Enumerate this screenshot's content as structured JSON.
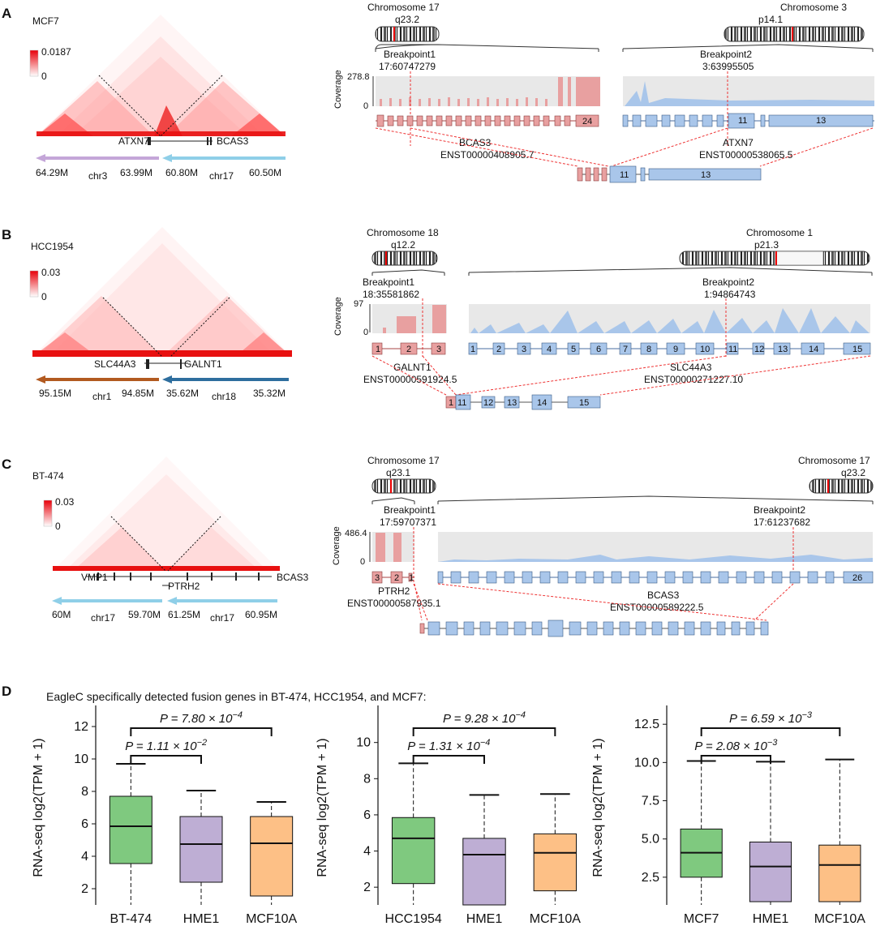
{
  "panels": {
    "A": {
      "label": "A",
      "cell_line": "MCF7",
      "scale_max": "0.0187",
      "scale_min": "0",
      "gene_left": "ATXN7",
      "gene_right": "BCAS3",
      "arrow_left": {
        "start": "64.29M",
        "chrom": "chr3",
        "end": "63.99M"
      },
      "arrow_right": {
        "start": "60.80M",
        "chrom": "chr17",
        "end": "60.50M"
      },
      "chrom1": {
        "name": "Chromosome 17",
        "band": "q23.2"
      },
      "chrom2": {
        "name": "Chromosome 3",
        "band": "p14.1"
      },
      "bp1": {
        "label": "Breakpoint1",
        "pos": "17:60747279"
      },
      "bp2": {
        "label": "Breakpoint2",
        "pos": "3:63995505"
      },
      "coverage_label": "Coverage",
      "coverage_max": "278.8",
      "coverage_min": "0",
      "tx1": {
        "gene": "BCAS3",
        "id": "ENST00000408905.7"
      },
      "tx2": {
        "gene": "ATXN7",
        "id": "ENST00000538065.5"
      },
      "exon_big_left": "24",
      "exon_mid_right": "11",
      "exon_big_right": "13",
      "fusion_exon_a": "11",
      "fusion_exon_b": "13"
    },
    "B": {
      "label": "B",
      "cell_line": "HCC1954",
      "scale_max": "0.03",
      "scale_min": "0",
      "gene_left": "SLC44A3",
      "gene_right": "GALNT1",
      "arrow_left": {
        "start": "95.15M",
        "chrom": "chr1",
        "end": "94.85M"
      },
      "arrow_right": {
        "start": "35.62M",
        "chrom": "chr18",
        "end": "35.32M"
      },
      "chrom1": {
        "name": "Chromosome 18",
        "band": "q12.2"
      },
      "chrom2": {
        "name": "Chromosome 1",
        "band": "p21.3"
      },
      "bp1": {
        "label": "Breakpoint1",
        "pos": "18:35581862"
      },
      "bp2": {
        "label": "Breakpoint2",
        "pos": "1:94864743"
      },
      "coverage_label": "Coverage",
      "coverage_max": "97",
      "coverage_min": "0",
      "tx1": {
        "gene": "GALNT1",
        "id": "ENST00000591924.5"
      },
      "tx2": {
        "gene": "SLC44A3",
        "id": "ENST00000271227.10"
      },
      "left_exons": [
        "1",
        "2",
        "3"
      ],
      "right_exons": [
        "1",
        "2",
        "3",
        "4",
        "5",
        "6",
        "7",
        "8",
        "9",
        "10",
        "11",
        "12",
        "13",
        "14",
        "15"
      ],
      "fusion_exons": [
        "1",
        "11",
        "12",
        "13",
        "14",
        "15"
      ]
    },
    "C": {
      "label": "C",
      "cell_line": "BT-474",
      "scale_max": "0.03",
      "scale_min": "0",
      "gene_left": "VMP1",
      "gene_mid": "PTRH2",
      "gene_right": "BCAS3",
      "arrow_left": {
        "start": "60M",
        "chrom": "chr17",
        "end": "59.70M"
      },
      "arrow_right": {
        "start": "61.25M",
        "chrom": "chr17",
        "end": "60.95M"
      },
      "chrom1": {
        "name": "Chromosome 17",
        "band": "q23.1"
      },
      "chrom2": {
        "name": "Chromosome 17",
        "band": "q23.2"
      },
      "bp1": {
        "label": "Breakpoint1",
        "pos": "17:59707371"
      },
      "bp2": {
        "label": "Breakpoint2",
        "pos": "17:61237682"
      },
      "coverage_label": "Coverage",
      "coverage_max": "486.4",
      "coverage_min": "0",
      "tx1": {
        "gene": "PTRH2",
        "id": "ENST00000587935.1"
      },
      "tx2": {
        "gene": "BCAS3",
        "id": "ENST00000589222.5"
      },
      "left_exons": [
        "3",
        "2",
        "1"
      ],
      "right_exon_last": "26"
    },
    "D": {
      "label": "D",
      "title": "EagleC specifically detected fusion genes in BT-474, HCC1954, and MCF7:"
    }
  },
  "chart_data": [
    {
      "type": "box",
      "ylabel": "RNA-seq log2(TPM + 1)",
      "categories": [
        "BT-474",
        "HME1",
        "MCF10A"
      ],
      "colors": [
        "#7fc97f",
        "#beaed4",
        "#fdc086"
      ],
      "ylim": [
        1.2,
        12.8
      ],
      "yticks": [
        "2",
        "4",
        "6",
        "8",
        "10",
        "12"
      ],
      "ytick_values": [
        2,
        4,
        6,
        8,
        10,
        12
      ],
      "boxes": [
        {
          "whislo": 1.0,
          "q1": 3.55,
          "med": 5.85,
          "q3": 7.7,
          "whishi": 9.7
        },
        {
          "whislo": 1.0,
          "q1": 2.4,
          "med": 4.75,
          "q3": 6.45,
          "whishi": 8.05
        },
        {
          "whislo": 1.0,
          "q1": 1.55,
          "med": 4.8,
          "q3": 6.45,
          "whishi": 7.35
        }
      ],
      "comparisons": [
        {
          "pair": [
            0,
            1
          ],
          "label": "P = 1.11 × 10",
          "exp": "−2"
        },
        {
          "pair": [
            0,
            2
          ],
          "label": "P = 7.80 × 10",
          "exp": "−4"
        }
      ]
    },
    {
      "type": "box",
      "ylabel": "RNA-seq log2(TPM + 1)",
      "categories": [
        "HCC1954",
        "HME1",
        "MCF10A"
      ],
      "colors": [
        "#7fc97f",
        "#beaed4",
        "#fdc086"
      ],
      "ylim": [
        1.2,
        11.6
      ],
      "yticks": [
        "2",
        "4",
        "6",
        "8",
        "10"
      ],
      "ytick_values": [
        2,
        4,
        6,
        8,
        10
      ],
      "boxes": [
        {
          "whislo": 1.0,
          "q1": 2.2,
          "med": 4.7,
          "q3": 5.85,
          "whishi": 8.85
        },
        {
          "whislo": 1.0,
          "q1": 1.0,
          "med": 3.8,
          "q3": 4.7,
          "whishi": 7.1
        },
        {
          "whislo": 1.0,
          "q1": 1.8,
          "med": 3.9,
          "q3": 4.95,
          "whishi": 7.15
        }
      ],
      "comparisons": [
        {
          "pair": [
            0,
            1
          ],
          "label": "P = 1.31 × 10",
          "exp": "−4"
        },
        {
          "pair": [
            0,
            2
          ],
          "label": "P = 9.28 × 10",
          "exp": "−4"
        }
      ]
    },
    {
      "type": "box",
      "ylabel": "RNA-seq log2(TPM + 1)",
      "categories": [
        "MCF7",
        "HME1",
        "MCF10A"
      ],
      "colors": [
        "#7fc97f",
        "#beaed4",
        "#fdc086"
      ],
      "ylim": [
        0.9,
        13.2
      ],
      "yticks": [
        "2.5",
        "5.0",
        "7.5",
        "10.0",
        "12.5"
      ],
      "ytick_values": [
        2.5,
        5.0,
        7.5,
        10.0,
        12.5
      ],
      "boxes": [
        {
          "whislo": 0.5,
          "q1": 2.5,
          "med": 4.1,
          "q3": 5.65,
          "whishi": 10.1
        },
        {
          "whislo": 0.5,
          "q1": 0.9,
          "med": 3.2,
          "q3": 4.8,
          "whishi": 10.05
        },
        {
          "whislo": 0.5,
          "q1": 0.9,
          "med": 3.3,
          "q3": 4.6,
          "whishi": 10.2
        }
      ],
      "comparisons": [
        {
          "pair": [
            0,
            1
          ],
          "label": "P = 2.08 × 10",
          "exp": "−3"
        },
        {
          "pair": [
            0,
            2
          ],
          "label": "P = 6.59 × 10",
          "exp": "−3"
        }
      ]
    }
  ]
}
